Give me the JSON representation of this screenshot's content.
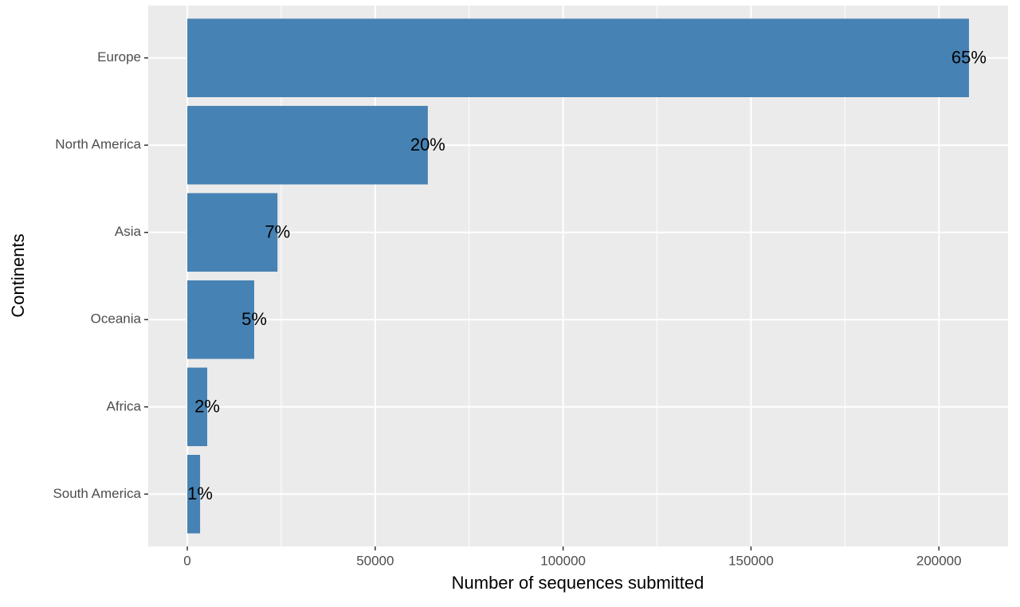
{
  "chart_data": {
    "type": "barh",
    "categories": [
      "Europe",
      "North America",
      "Asia",
      "Oceania",
      "Africa",
      "South America"
    ],
    "values": [
      208000,
      64000,
      24000,
      17800,
      5300,
      3400
    ],
    "percent_labels": [
      "65%",
      "20%",
      "7%",
      "5%",
      "2%",
      "1%"
    ],
    "color": "#4682b4",
    "xlabel": "Number of sequences submitted",
    "ylabel": "Continents",
    "xlim": [
      -10400,
      218400
    ],
    "xticks": [
      0,
      50000,
      100000,
      150000,
      200000
    ],
    "xminor": [
      25000,
      75000,
      125000,
      175000
    ],
    "grid": true
  }
}
